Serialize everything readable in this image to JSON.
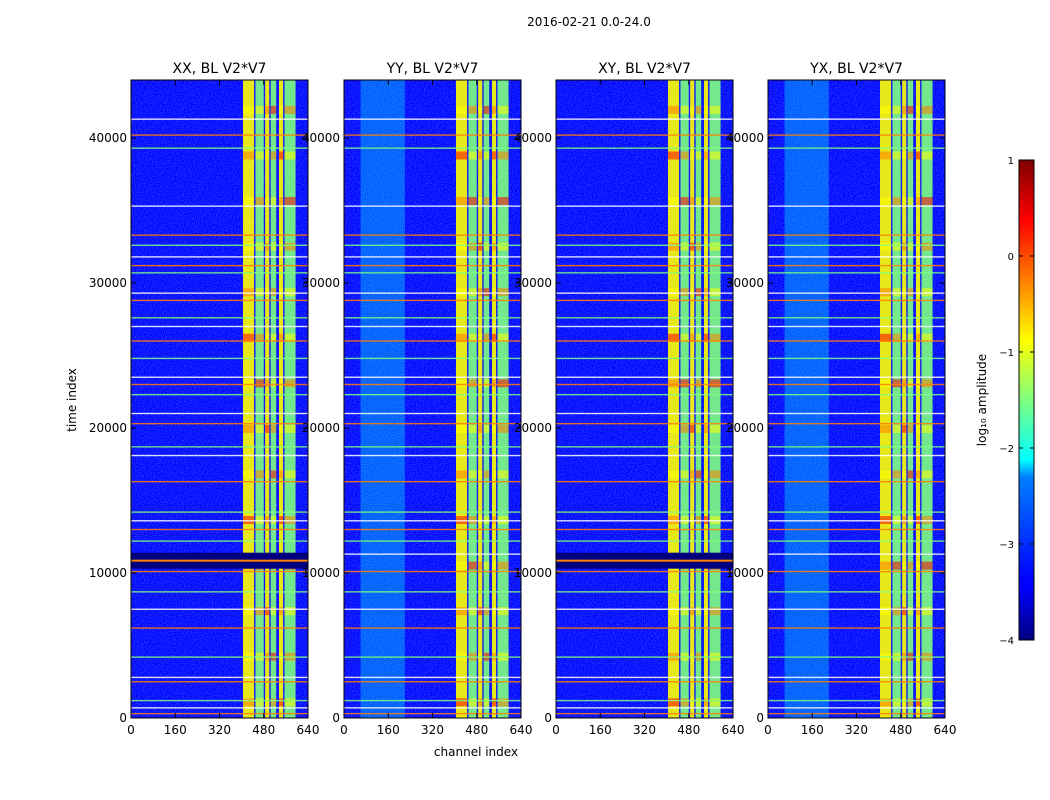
{
  "figure": {
    "suptitle": "2016-02-21 0.0-24.0",
    "xlabel": "channel index",
    "ylabel": "time index"
  },
  "chart_data": [
    {
      "type": "heatmap",
      "title": "XX, BL V2*V7",
      "xlim": [
        0,
        640
      ],
      "ylim": [
        0,
        44000
      ],
      "xticks": [
        "0",
        "160",
        "320",
        "480",
        "640"
      ],
      "yticks": [
        "0",
        "10000",
        "20000",
        "30000",
        "40000"
      ],
      "bright_channels": [
        [
          405,
          445
        ],
        [
          450,
          480
        ],
        [
          485,
          500
        ],
        [
          505,
          525
        ],
        [
          535,
          550
        ],
        [
          555,
          595
        ]
      ],
      "diffuse_band": [
        0,
        0
      ],
      "horizontal_lines": [
        300,
        700,
        1200,
        2500,
        2800,
        4200,
        6200,
        7500,
        8700,
        10100,
        11300,
        12200,
        13000,
        13600,
        14200,
        16300,
        18100,
        18700,
        20300,
        21000,
        22300,
        23000,
        23500,
        24800,
        26000,
        27000,
        27600,
        28800,
        29300,
        30700,
        31200,
        31800,
        32600,
        33300,
        35300,
        39300,
        40200,
        41300
      ],
      "flag_block": [
        10300,
        11400
      ]
    },
    {
      "type": "heatmap",
      "title": "YY, BL V2*V7",
      "xlim": [
        0,
        640
      ],
      "ylim": [
        0,
        44000
      ],
      "xticks": [
        "0",
        "160",
        "320",
        "480",
        "640"
      ],
      "yticks": [
        "0",
        "10000",
        "20000",
        "30000",
        "40000"
      ],
      "bright_channels": [
        [
          405,
          445
        ],
        [
          450,
          480
        ],
        [
          485,
          500
        ],
        [
          505,
          525
        ],
        [
          535,
          550
        ],
        [
          555,
          595
        ]
      ],
      "diffuse_band": [
        60,
        220
      ],
      "horizontal_lines": [
        300,
        700,
        1200,
        2500,
        2800,
        4200,
        6200,
        7500,
        8700,
        10100,
        11300,
        12200,
        13000,
        13600,
        14200,
        16300,
        18100,
        18700,
        20300,
        21000,
        22300,
        23000,
        23500,
        24800,
        26000,
        27000,
        27600,
        28800,
        29300,
        30700,
        31200,
        31800,
        32600,
        33300,
        35300,
        39300,
        40200,
        41300
      ],
      "flag_block": [
        0,
        0
      ]
    },
    {
      "type": "heatmap",
      "title": "XY, BL V2*V7",
      "xlim": [
        0,
        640
      ],
      "ylim": [
        0,
        44000
      ],
      "xticks": [
        "0",
        "160",
        "320",
        "480",
        "640"
      ],
      "yticks": [
        "0",
        "10000",
        "20000",
        "30000",
        "40000"
      ],
      "bright_channels": [
        [
          405,
          445
        ],
        [
          450,
          480
        ],
        [
          485,
          500
        ],
        [
          505,
          525
        ],
        [
          535,
          550
        ],
        [
          555,
          595
        ]
      ],
      "diffuse_band": [
        0,
        0
      ],
      "horizontal_lines": [
        300,
        700,
        1200,
        2500,
        2800,
        4200,
        6200,
        7500,
        8700,
        10100,
        11300,
        12200,
        13000,
        13600,
        14200,
        16300,
        18100,
        18700,
        20300,
        21000,
        22300,
        23000,
        23500,
        24800,
        26000,
        27000,
        27600,
        28800,
        29300,
        30700,
        31200,
        31800,
        32600,
        33300,
        35300,
        39300,
        40200,
        41300
      ],
      "flag_block": [
        10300,
        11400
      ]
    },
    {
      "type": "heatmap",
      "title": "YX, BL V2*V7",
      "xlim": [
        0,
        640
      ],
      "ylim": [
        0,
        44000
      ],
      "xticks": [
        "0",
        "160",
        "320",
        "480",
        "640"
      ],
      "yticks": [
        "0",
        "10000",
        "20000",
        "30000",
        "40000"
      ],
      "bright_channels": [
        [
          405,
          445
        ],
        [
          450,
          480
        ],
        [
          485,
          500
        ],
        [
          505,
          525
        ],
        [
          535,
          550
        ],
        [
          555,
          595
        ]
      ],
      "diffuse_band": [
        60,
        220
      ],
      "horizontal_lines": [
        300,
        700,
        1200,
        2500,
        2800,
        4200,
        6200,
        7500,
        8700,
        10100,
        11300,
        12200,
        13000,
        13600,
        14200,
        16300,
        18100,
        18700,
        20300,
        21000,
        22300,
        23000,
        23500,
        24800,
        26000,
        27000,
        27600,
        28800,
        29300,
        30700,
        31200,
        31800,
        32600,
        33300,
        35300,
        39300,
        40200,
        41300
      ],
      "flag_block": [
        0,
        0
      ]
    }
  ],
  "colorbar": {
    "label": "log₁₀ amplitude",
    "vmin": -4,
    "vmax": 1,
    "ticks": [
      "1",
      "0",
      "−1",
      "−2",
      "−3",
      "−4"
    ],
    "colormap": "jet",
    "colors": [
      "#00007f",
      "#0000ff",
      "#007fff",
      "#00ffff",
      "#7fff7f",
      "#ffff00",
      "#ff7f00",
      "#ff0000",
      "#7f0000"
    ]
  }
}
